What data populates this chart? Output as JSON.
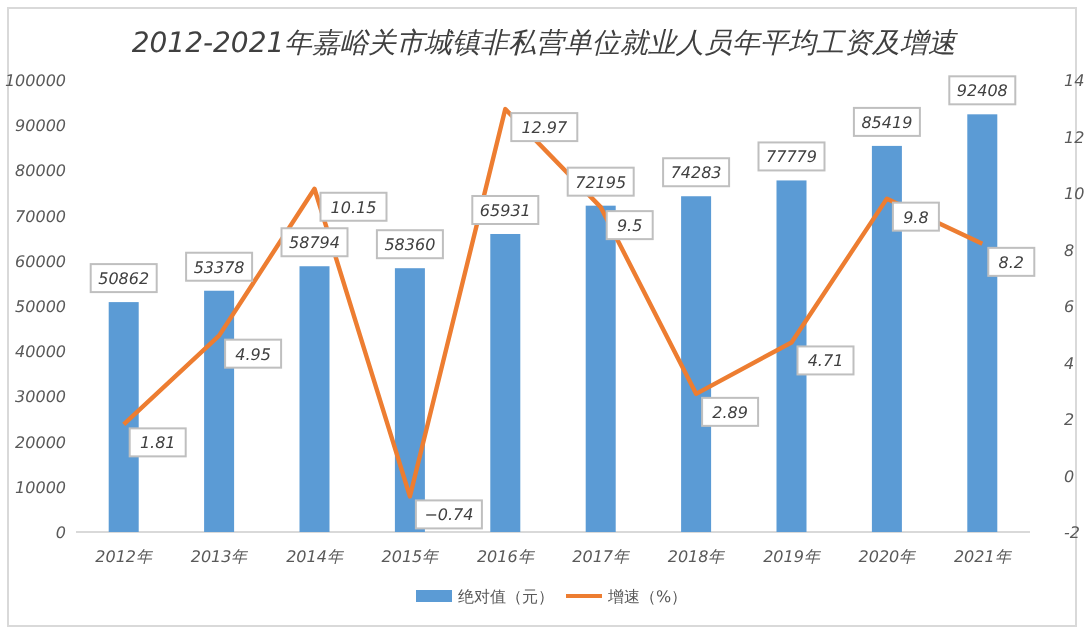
{
  "chart_data": {
    "type": "bar",
    "title": "2012-2021年嘉峪关市城镇非私营单位就业人员年平均工资及增速",
    "categories": [
      "2012年",
      "2013年",
      "2014年",
      "2015年",
      "2016年",
      "2017年",
      "2018年",
      "2019年",
      "2020年",
      "2021年"
    ],
    "series": [
      {
        "name": "绝对值（元）",
        "color": "#5b9bd5",
        "values": [
          50862,
          53378,
          58794,
          58360,
          65931,
          72195,
          74283,
          77779,
          85419,
          92408
        ],
        "value_labels": [
          "50862",
          "53378",
          "58794",
          "58360",
          "65931",
          "72195",
          "74283",
          "77779",
          "85419",
          "92408"
        ]
      },
      {
        "name": "增速（%）",
        "type": "line",
        "axis": "y2",
        "color": "#ed7d31",
        "values": [
          1.81,
          4.95,
          10.15,
          -0.74,
          12.97,
          9.5,
          2.89,
          4.71,
          9.8,
          8.2
        ],
        "value_labels": [
          "1.81",
          "4.95",
          "10.15",
          "−0.74",
          "12.97",
          "9.5",
          "2.89",
          "4.71",
          "9.8",
          "8.2"
        ]
      }
    ],
    "ylim": [
      0,
      100000
    ],
    "yticks": [
      0,
      10000,
      20000,
      30000,
      40000,
      50000,
      60000,
      70000,
      80000,
      90000,
      100000
    ],
    "y2lim": [
      -2,
      14
    ],
    "y2ticks": [
      -2,
      0,
      2,
      4,
      6,
      8,
      10,
      12,
      14
    ],
    "grid": false,
    "legend": "bottom"
  }
}
